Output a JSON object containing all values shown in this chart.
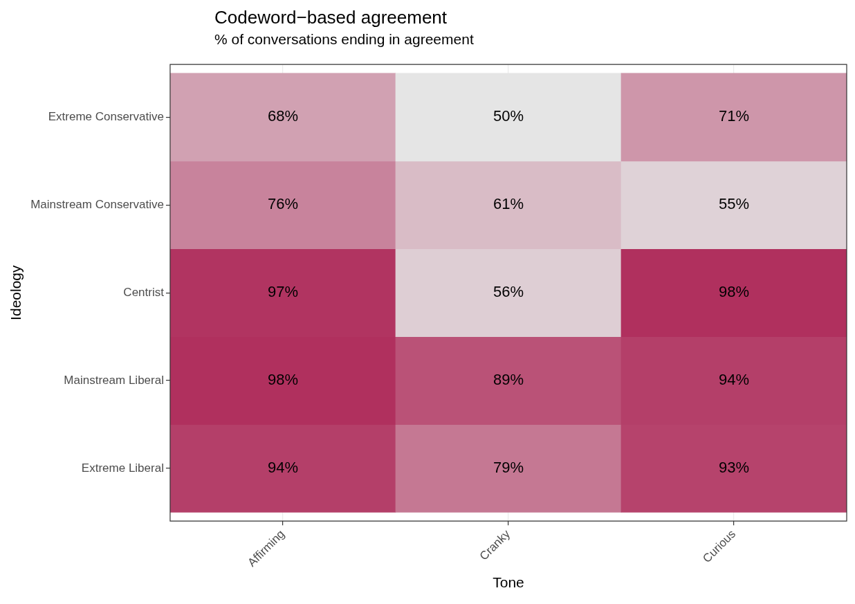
{
  "chart_data": {
    "type": "heatmap",
    "title": "Codeword−based agreement",
    "subtitle": "% of conversations ending in agreement",
    "xlabel": "Tone",
    "ylabel": "Ideology",
    "categories": [
      "Affirming",
      "Cranky",
      "Curious"
    ],
    "y_categories": [
      "Extreme Conservative",
      "Mainstream Conservative",
      "Centrist",
      "Mainstream Liberal",
      "Extreme Liberal"
    ],
    "cells": [
      [
        68,
        50,
        71
      ],
      [
        76,
        61,
        55
      ],
      [
        97,
        56,
        98
      ],
      [
        98,
        89,
        94
      ],
      [
        94,
        79,
        93
      ]
    ],
    "cell_labels": [
      [
        "68%",
        "50%",
        "71%"
      ],
      [
        "76%",
        "61%",
        "55%"
      ],
      [
        "97%",
        "56%",
        "98%"
      ],
      [
        "98%",
        "89%",
        "94%"
      ],
      [
        "94%",
        "79%",
        "93%"
      ]
    ],
    "colors": [
      "#e5e5e5",
      "#b0305e"
    ],
    "grid": true,
    "legend": false
  }
}
